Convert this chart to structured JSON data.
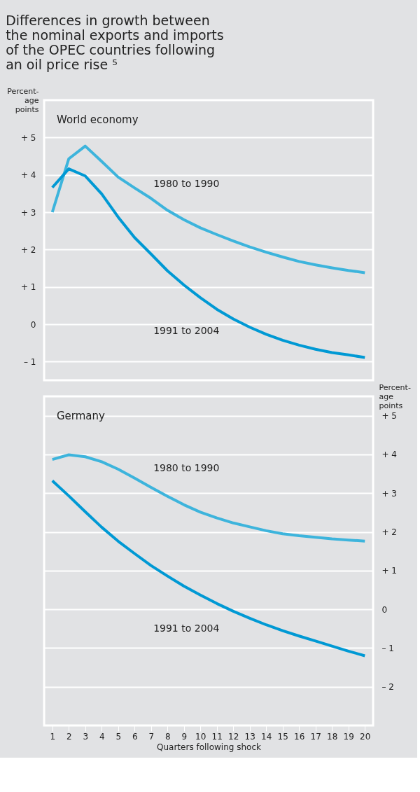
{
  "chart_data": [
    {
      "type": "line",
      "title": "Differences in growth between the nominal exports and imports of the OPEC countries following an oil price rise ⁵",
      "subtitle": "World economy",
      "ylabel": "Percent-\nage\npoints",
      "x": [
        1,
        2,
        3,
        4,
        5,
        6,
        7,
        8,
        9,
        10,
        11,
        12,
        13,
        14,
        15,
        16,
        17,
        18,
        19,
        20
      ],
      "xlim": [
        0.5,
        20.5
      ],
      "xticks": [
        1,
        2,
        3,
        4,
        5,
        6,
        7,
        8,
        9,
        10,
        11,
        12,
        13,
        14,
        15,
        16,
        17,
        18,
        19,
        20
      ],
      "ylim": [
        -1.5,
        6.0
      ],
      "yticks": [
        {
          "value": 5,
          "label": "+ 5"
        },
        {
          "value": 4,
          "label": "+ 4"
        },
        {
          "value": 3,
          "label": "+ 3"
        },
        {
          "value": 2,
          "label": "+ 2"
        },
        {
          "value": 1,
          "label": "+ 1"
        },
        0,
        {
          "value": -1,
          "label": "– 1"
        }
      ],
      "grid": "y",
      "tick_labels": "y",
      "line_style": "solid",
      "marker": "none",
      "legend": false,
      "series": [
        {
          "name": "1980 to 1990",
          "color": "#3db4dc",
          "values": [
            3.0,
            4.43,
            4.77,
            4.36,
            3.94,
            3.65,
            3.37,
            3.05,
            2.8,
            2.58,
            2.4,
            2.23,
            2.07,
            1.93,
            1.8,
            1.68,
            1.59,
            1.51,
            1.44,
            1.38
          ]
        },
        {
          "name": "1991 to 2004",
          "color": "#0099d4",
          "values": [
            3.66,
            4.16,
            3.97,
            3.49,
            2.87,
            2.32,
            1.88,
            1.43,
            1.05,
            0.71,
            0.4,
            0.14,
            -0.08,
            -0.27,
            -0.43,
            -0.56,
            -0.67,
            -0.76,
            -0.82,
            -0.89
          ]
        }
      ]
    },
    {
      "type": "line",
      "subtitle": "Germany",
      "y2label": "Percent-\nage\npoints",
      "xlabel": "Quarters following shock",
      "x": [
        1,
        2,
        3,
        4,
        5,
        6,
        7,
        8,
        9,
        10,
        11,
        12,
        13,
        14,
        15,
        16,
        17,
        18,
        19,
        20
      ],
      "xlim": [
        0.5,
        20.5
      ],
      "xticks": [
        1,
        2,
        3,
        4,
        5,
        6,
        7,
        8,
        9,
        10,
        11,
        12,
        13,
        14,
        15,
        16,
        17,
        18,
        19,
        20
      ],
      "y2lim": [
        -3.0,
        5.5
      ],
      "y2ticks": [
        {
          "value": 5,
          "label": "+ 5"
        },
        {
          "value": 4,
          "label": "+ 4"
        },
        {
          "value": 3,
          "label": "+ 3"
        },
        {
          "value": 2,
          "label": "+ 2"
        },
        {
          "value": 1,
          "label": "+ 1"
        },
        0,
        {
          "value": -1,
          "label": "– 1"
        },
        {
          "value": -2,
          "label": "– 2"
        }
      ],
      "grid": "y",
      "line_style": "solid",
      "marker": "none",
      "legend": false,
      "series": [
        {
          "name": "1980 to 1990",
          "color": "#3db4dc",
          "axis": "y2",
          "values": [
            3.87,
            3.99,
            3.94,
            3.81,
            3.62,
            3.39,
            3.15,
            2.92,
            2.7,
            2.51,
            2.36,
            2.23,
            2.13,
            2.03,
            1.95,
            1.9,
            1.86,
            1.82,
            1.79,
            1.76
          ]
        },
        {
          "name": "1991 to 2004",
          "color": "#0099d4",
          "axis": "y2",
          "values": [
            3.32,
            2.93,
            2.52,
            2.12,
            1.76,
            1.44,
            1.13,
            0.86,
            0.6,
            0.37,
            0.15,
            -0.05,
            -0.23,
            -0.4,
            -0.55,
            -0.69,
            -0.82,
            -0.95,
            -1.08,
            -1.2
          ]
        }
      ]
    }
  ]
}
